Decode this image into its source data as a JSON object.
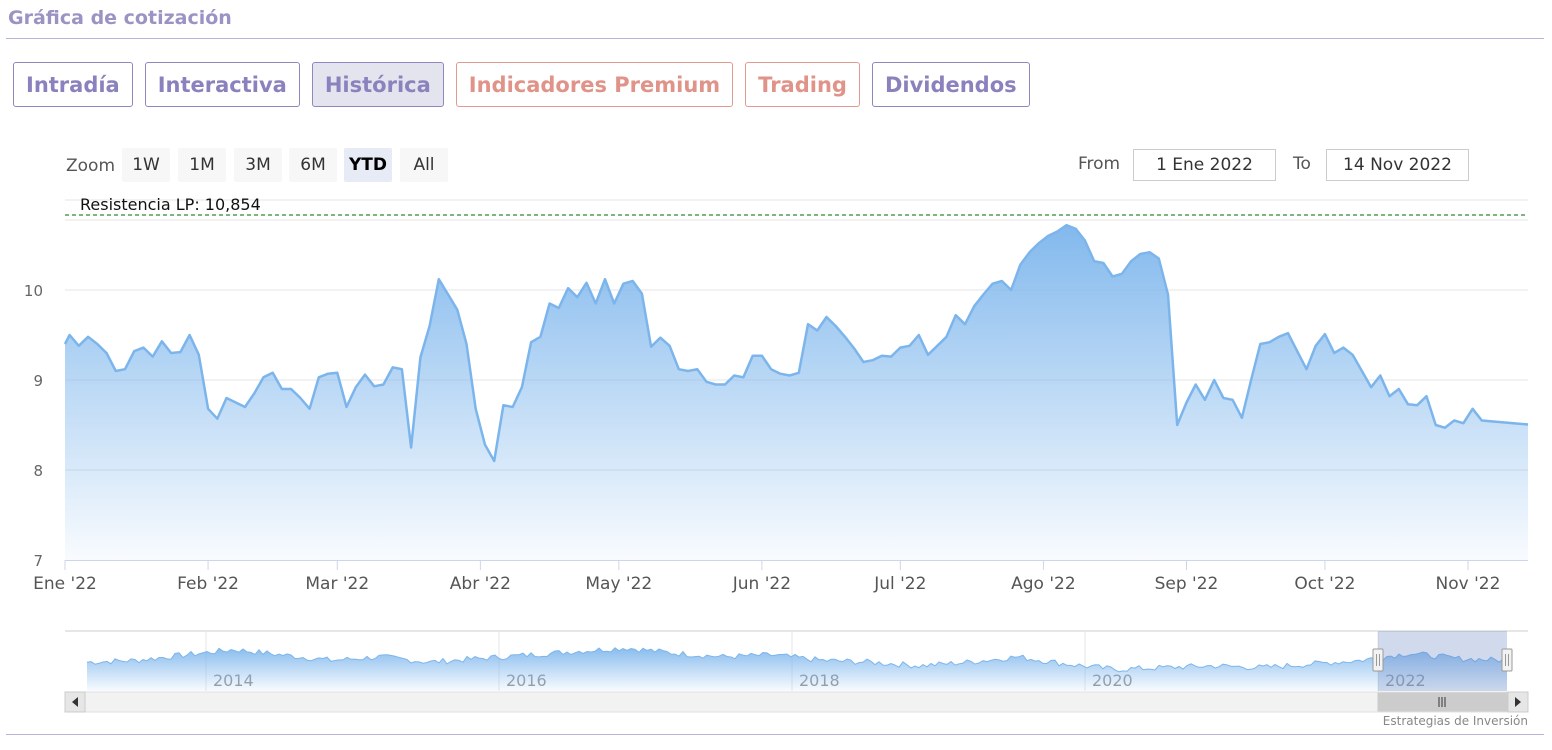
{
  "page": {
    "section_title": "Gráfica de cotización"
  },
  "tabs": [
    {
      "label": "Intradía",
      "style": "purple"
    },
    {
      "label": "Interactiva",
      "style": "purple"
    },
    {
      "label": "Histórica",
      "style": "active"
    },
    {
      "label": "Indicadores Premium",
      "style": "pink"
    },
    {
      "label": "Trading",
      "style": "pink"
    },
    {
      "label": "Dividendos",
      "style": "purple"
    }
  ],
  "range_selector": {
    "zoom_label": "Zoom",
    "buttons": [
      "1W",
      "1M",
      "3M",
      "6M",
      "YTD",
      "All"
    ],
    "selected": "YTD",
    "from_label": "From",
    "from_value": "1 Ene 2022",
    "to_label": "To",
    "to_value": "14 Nov 2022"
  },
  "credits": "Estrategias de Inversión",
  "colors": {
    "line": "#7cb5ec",
    "area_top": "#7cb5ec",
    "resistance": "#2e8b2e",
    "tab_purple": "#8a82bd",
    "tab_pink": "#e09388"
  },
  "chart_data": {
    "type": "area",
    "annotation": {
      "label": "Resistencia LP: 10,854",
      "value": 10.854,
      "style": "dashed"
    },
    "y_ticks": [
      7,
      8,
      9,
      10
    ],
    "ylim": [
      7,
      11
    ],
    "x_ticks": [
      "Ene '22",
      "Feb '22",
      "Mar '22",
      "Abr '22",
      "May '22",
      "Jun '22",
      "Jul '22",
      "Ago '22",
      "Sep '22",
      "Oct '22",
      "Nov '22"
    ],
    "xlim": [
      "2022-01-01",
      "2022-11-14"
    ],
    "grid": true,
    "series": [
      {
        "values": [
          [
            "2022-01-01",
            9.4
          ],
          [
            "2022-01-02",
            9.5
          ],
          [
            "2022-01-04",
            9.38
          ],
          [
            "2022-01-06",
            9.48
          ],
          [
            "2022-01-08",
            9.4
          ],
          [
            "2022-01-10",
            9.3
          ],
          [
            "2022-01-12",
            9.1
          ],
          [
            "2022-01-14",
            9.12
          ],
          [
            "2022-01-16",
            9.32
          ],
          [
            "2022-01-18",
            9.36
          ],
          [
            "2022-01-20",
            9.26
          ],
          [
            "2022-01-22",
            9.43
          ],
          [
            "2022-01-24",
            9.3
          ],
          [
            "2022-01-26",
            9.31
          ],
          [
            "2022-01-28",
            9.5
          ],
          [
            "2022-01-30",
            9.28
          ],
          [
            "2022-02-01",
            8.68
          ],
          [
            "2022-02-03",
            8.57
          ],
          [
            "2022-02-05",
            8.8
          ],
          [
            "2022-02-07",
            8.75
          ],
          [
            "2022-02-09",
            8.7
          ],
          [
            "2022-02-11",
            8.85
          ],
          [
            "2022-02-13",
            9.03
          ],
          [
            "2022-02-15",
            9.08
          ],
          [
            "2022-02-17",
            8.9
          ],
          [
            "2022-02-19",
            8.9
          ],
          [
            "2022-02-21",
            8.8
          ],
          [
            "2022-02-23",
            8.68
          ],
          [
            "2022-02-25",
            9.03
          ],
          [
            "2022-02-27",
            9.07
          ],
          [
            "2022-03-01",
            9.08
          ],
          [
            "2022-03-03",
            8.7
          ],
          [
            "2022-03-05",
            8.92
          ],
          [
            "2022-03-07",
            9.06
          ],
          [
            "2022-03-09",
            8.93
          ],
          [
            "2022-03-11",
            8.95
          ],
          [
            "2022-03-13",
            9.14
          ],
          [
            "2022-03-15",
            9.12
          ],
          [
            "2022-03-17",
            8.25
          ],
          [
            "2022-03-19",
            9.25
          ],
          [
            "2022-03-21",
            9.6
          ],
          [
            "2022-03-23",
            10.12
          ],
          [
            "2022-03-25",
            9.95
          ],
          [
            "2022-03-27",
            9.78
          ],
          [
            "2022-03-29",
            9.4
          ],
          [
            "2022-03-31",
            8.68
          ],
          [
            "2022-04-02",
            8.28
          ],
          [
            "2022-04-04",
            8.1
          ],
          [
            "2022-04-06",
            8.72
          ],
          [
            "2022-04-08",
            8.7
          ],
          [
            "2022-04-10",
            8.92
          ],
          [
            "2022-04-12",
            9.42
          ],
          [
            "2022-04-14",
            9.48
          ],
          [
            "2022-04-16",
            9.85
          ],
          [
            "2022-04-18",
            9.8
          ],
          [
            "2022-04-20",
            10.02
          ],
          [
            "2022-04-22",
            9.92
          ],
          [
            "2022-04-24",
            10.08
          ],
          [
            "2022-04-26",
            9.85
          ],
          [
            "2022-04-28",
            10.12
          ],
          [
            "2022-04-30",
            9.85
          ],
          [
            "2022-05-02",
            10.07
          ],
          [
            "2022-05-04",
            10.1
          ],
          [
            "2022-05-06",
            9.96
          ],
          [
            "2022-05-08",
            9.37
          ],
          [
            "2022-05-10",
            9.47
          ],
          [
            "2022-05-12",
            9.38
          ],
          [
            "2022-05-14",
            9.12
          ],
          [
            "2022-05-16",
            9.1
          ],
          [
            "2022-05-18",
            9.12
          ],
          [
            "2022-05-20",
            8.98
          ],
          [
            "2022-05-22",
            8.95
          ],
          [
            "2022-05-24",
            8.95
          ],
          [
            "2022-05-26",
            9.05
          ],
          [
            "2022-05-28",
            9.03
          ],
          [
            "2022-05-30",
            9.27
          ],
          [
            "2022-06-01",
            9.27
          ],
          [
            "2022-06-03",
            9.12
          ],
          [
            "2022-06-05",
            9.07
          ],
          [
            "2022-06-07",
            9.05
          ],
          [
            "2022-06-09",
            9.08
          ],
          [
            "2022-06-11",
            9.62
          ],
          [
            "2022-06-13",
            9.55
          ],
          [
            "2022-06-15",
            9.7
          ],
          [
            "2022-06-17",
            9.6
          ],
          [
            "2022-06-19",
            9.48
          ],
          [
            "2022-06-21",
            9.35
          ],
          [
            "2022-06-23",
            9.2
          ],
          [
            "2022-06-25",
            9.22
          ],
          [
            "2022-06-27",
            9.27
          ],
          [
            "2022-06-29",
            9.26
          ],
          [
            "2022-07-01",
            9.36
          ],
          [
            "2022-07-03",
            9.38
          ],
          [
            "2022-07-05",
            9.5
          ],
          [
            "2022-07-07",
            9.28
          ],
          [
            "2022-07-09",
            9.38
          ],
          [
            "2022-07-11",
            9.48
          ],
          [
            "2022-07-13",
            9.72
          ],
          [
            "2022-07-15",
            9.62
          ],
          [
            "2022-07-17",
            9.82
          ],
          [
            "2022-07-19",
            9.95
          ],
          [
            "2022-07-21",
            10.07
          ],
          [
            "2022-07-23",
            10.1
          ],
          [
            "2022-07-25",
            10.0
          ],
          [
            "2022-07-27",
            10.28
          ],
          [
            "2022-07-29",
            10.42
          ],
          [
            "2022-07-31",
            10.52
          ],
          [
            "2022-08-02",
            10.6
          ],
          [
            "2022-08-04",
            10.65
          ],
          [
            "2022-08-06",
            10.72
          ],
          [
            "2022-08-08",
            10.68
          ],
          [
            "2022-08-10",
            10.55
          ],
          [
            "2022-08-12",
            10.32
          ],
          [
            "2022-08-14",
            10.3
          ],
          [
            "2022-08-16",
            10.15
          ],
          [
            "2022-08-18",
            10.18
          ],
          [
            "2022-08-20",
            10.32
          ],
          [
            "2022-08-22",
            10.4
          ],
          [
            "2022-08-24",
            10.42
          ],
          [
            "2022-08-26",
            10.35
          ],
          [
            "2022-08-28",
            9.95
          ],
          [
            "2022-08-30",
            8.5
          ],
          [
            "2022-09-01",
            8.75
          ],
          [
            "2022-09-03",
            8.95
          ],
          [
            "2022-09-05",
            8.78
          ],
          [
            "2022-09-07",
            9.0
          ],
          [
            "2022-09-09",
            8.8
          ],
          [
            "2022-09-11",
            8.78
          ],
          [
            "2022-09-13",
            8.58
          ],
          [
            "2022-09-15",
            9.0
          ],
          [
            "2022-09-17",
            9.4
          ],
          [
            "2022-09-19",
            9.42
          ],
          [
            "2022-09-21",
            9.48
          ],
          [
            "2022-09-23",
            9.52
          ],
          [
            "2022-09-25",
            9.32
          ],
          [
            "2022-09-27",
            9.12
          ],
          [
            "2022-09-29",
            9.38
          ],
          [
            "2022-10-01",
            9.51
          ],
          [
            "2022-10-03",
            9.3
          ],
          [
            "2022-10-05",
            9.36
          ],
          [
            "2022-10-07",
            9.28
          ],
          [
            "2022-10-09",
            9.1
          ],
          [
            "2022-10-11",
            8.92
          ],
          [
            "2022-10-13",
            9.05
          ],
          [
            "2022-10-15",
            8.82
          ],
          [
            "2022-10-17",
            8.9
          ],
          [
            "2022-10-19",
            8.73
          ],
          [
            "2022-10-21",
            8.72
          ],
          [
            "2022-10-23",
            8.82
          ],
          [
            "2022-10-25",
            8.5
          ],
          [
            "2022-10-27",
            8.47
          ],
          [
            "2022-10-29",
            8.55
          ],
          [
            "2022-10-31",
            8.52
          ],
          [
            "2022-11-02",
            8.68
          ],
          [
            "2022-11-04",
            8.55
          ]
        ]
      }
    ]
  },
  "navigator": {
    "year_labels": [
      "2014",
      "2016",
      "2018",
      "2020",
      "2022"
    ]
  }
}
